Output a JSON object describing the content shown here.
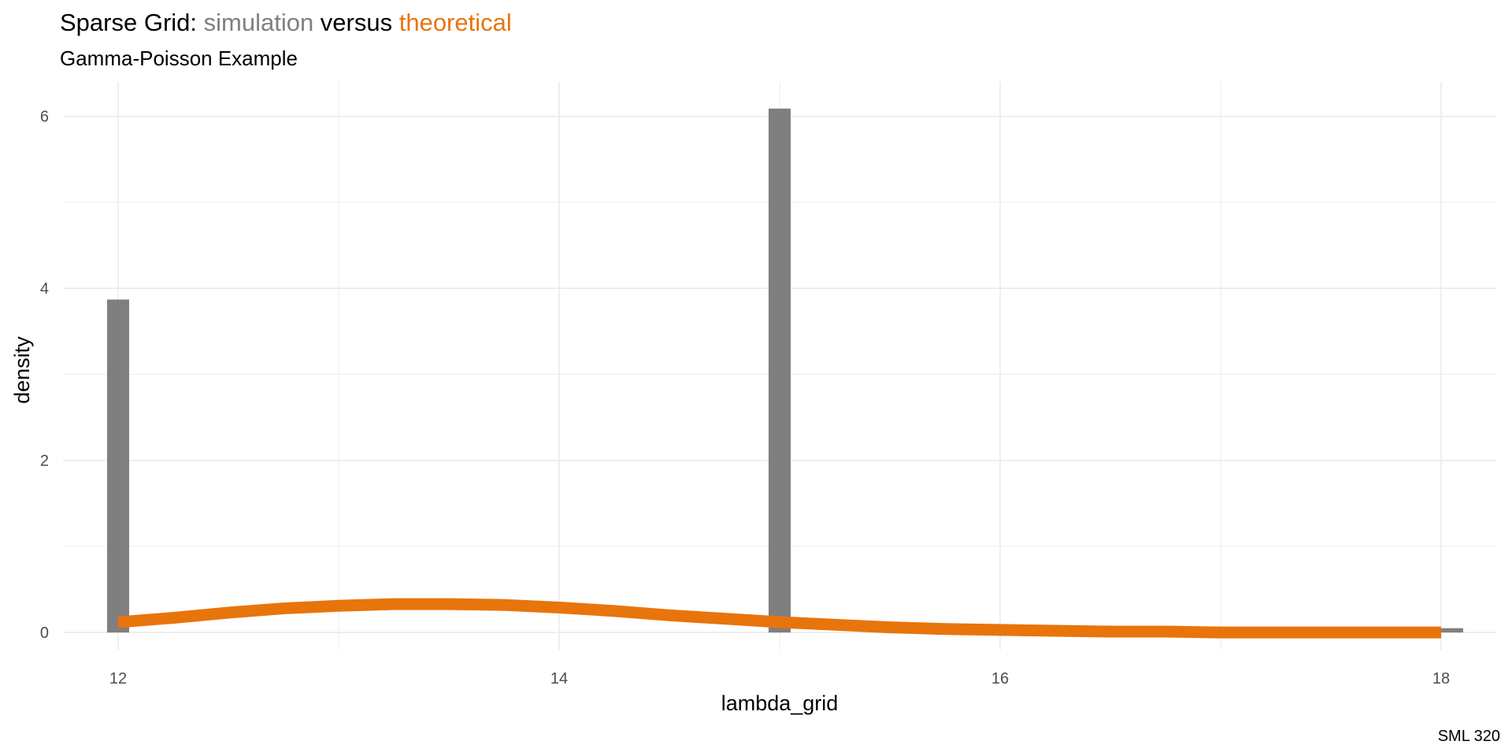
{
  "title": {
    "prefix": "Sparse Grid: ",
    "series1": "simulation",
    "joiner": " versus ",
    "series2": "theoretical"
  },
  "subtitle": "Gamma-Poisson Example",
  "caption": "SML 320",
  "colors": {
    "simulation": "#7f7f7f",
    "theoretical": "#e8740c",
    "title_text": "#000000",
    "grid": "#ebebeb"
  },
  "chart_data": {
    "type": "bar",
    "xlabel": "lambda_grid",
    "ylabel": "density",
    "xlim": [
      11.75,
      18.25
    ],
    "ylim": [
      -0.2,
      6.4
    ],
    "x_ticks": [
      12,
      14,
      16,
      18
    ],
    "x_tick_labels": [
      "12",
      "14",
      "16",
      "18"
    ],
    "y_ticks": [
      0,
      2,
      4,
      6
    ],
    "y_tick_labels": [
      "0",
      "2",
      "4",
      "6"
    ],
    "grid": true,
    "series": [
      {
        "name": "simulation",
        "type": "bar",
        "bar_width": 0.1,
        "x": [
          12.0,
          15.0,
          18.05
        ],
        "values": [
          3.87,
          6.09,
          0.05
        ]
      },
      {
        "name": "theoretical",
        "type": "line",
        "x": [
          12.0,
          12.25,
          12.5,
          12.75,
          13.0,
          13.25,
          13.5,
          13.75,
          14.0,
          14.25,
          14.5,
          14.75,
          15.0,
          15.25,
          15.5,
          15.75,
          16.0,
          16.25,
          16.5,
          16.75,
          17.0,
          17.25,
          17.5,
          17.75,
          18.0
        ],
        "y": [
          0.12,
          0.17,
          0.23,
          0.28,
          0.31,
          0.33,
          0.33,
          0.32,
          0.29,
          0.25,
          0.2,
          0.16,
          0.12,
          0.09,
          0.06,
          0.04,
          0.03,
          0.02,
          0.01,
          0.01,
          0.0,
          0.0,
          0.0,
          0.0,
          0.0
        ]
      }
    ]
  }
}
